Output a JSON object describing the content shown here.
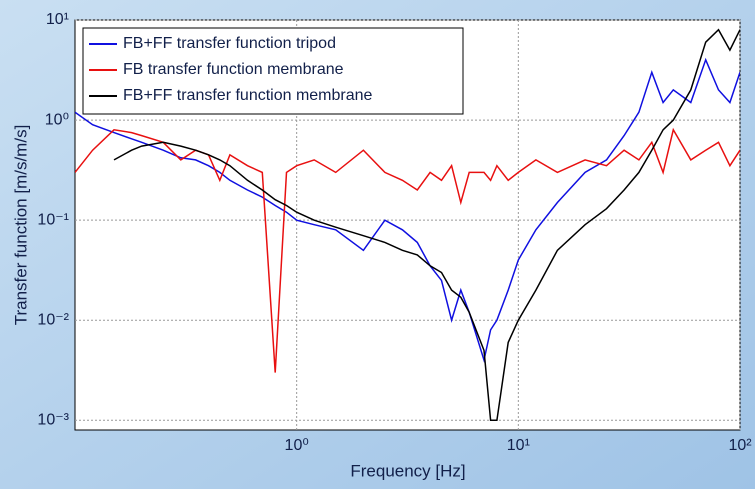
{
  "chart_data": {
    "type": "line",
    "xlabel": "Frequency [Hz]",
    "ylabel": "Transfer function [m/s/m/s]",
    "log_x": true,
    "log_y": true,
    "grid": true,
    "legend": "upper left",
    "xlim": [
      0.1,
      100
    ],
    "ylim": [
      0.0008,
      10
    ],
    "xticks": [
      {
        "value": 1,
        "label": "10⁰"
      },
      {
        "value": 10,
        "label": "10¹"
      },
      {
        "value": 100,
        "label": "10²"
      }
    ],
    "yticks": [
      {
        "value": 0.001,
        "label": "10⁻³"
      },
      {
        "value": 0.01,
        "label": "10⁻²"
      },
      {
        "value": 0.1,
        "label": "10⁻¹"
      },
      {
        "value": 1,
        "label": "10⁰"
      },
      {
        "value": 10,
        "label": "10¹"
      }
    ],
    "x": [
      0.1,
      0.12,
      0.15,
      0.18,
      0.2,
      0.25,
      0.3,
      0.35,
      0.4,
      0.45,
      0.5,
      0.6,
      0.7,
      0.8,
      0.9,
      1,
      1.2,
      1.5,
      2,
      2.5,
      3,
      3.5,
      4,
      4.5,
      5,
      5.5,
      6,
      7,
      7.5,
      8,
      9,
      10,
      12,
      15,
      20,
      25,
      30,
      35,
      40,
      45,
      50,
      60,
      70,
      80,
      90,
      100
    ],
    "series": [
      {
        "name": "FB+FF transfer function tripod",
        "color": "#1010e0",
        "values": [
          1.2,
          0.9,
          0.75,
          0.65,
          0.6,
          0.5,
          0.42,
          0.4,
          0.35,
          0.3,
          0.25,
          0.2,
          0.17,
          0.14,
          0.12,
          0.1,
          0.09,
          0.08,
          0.05,
          0.1,
          0.08,
          0.06,
          0.035,
          0.025,
          0.01,
          0.02,
          0.012,
          0.004,
          0.008,
          0.01,
          0.02,
          0.04,
          0.08,
          0.15,
          0.3,
          0.4,
          0.7,
          1.2,
          3,
          1.5,
          2,
          1.5,
          4,
          2,
          1.5,
          3
        ]
      },
      {
        "name": "FB transfer function membrane",
        "color": "#e81010",
        "values": [
          0.3,
          0.5,
          0.8,
          0.75,
          0.7,
          0.6,
          0.4,
          0.5,
          0.45,
          0.25,
          0.45,
          0.35,
          0.3,
          0.003,
          0.3,
          0.35,
          0.4,
          0.3,
          0.5,
          0.3,
          0.25,
          0.2,
          0.3,
          0.25,
          0.35,
          0.15,
          0.3,
          0.3,
          0.25,
          0.35,
          0.25,
          0.3,
          0.4,
          0.3,
          0.4,
          0.35,
          0.5,
          0.4,
          0.6,
          0.3,
          0.8,
          0.4,
          0.5,
          0.6,
          0.35,
          0.5
        ]
      },
      {
        "name": "FB+FF transfer function membrane",
        "color": "#000000",
        "values": [
          null,
          null,
          0.4,
          0.5,
          0.55,
          0.6,
          0.55,
          0.5,
          0.45,
          0.4,
          0.35,
          0.25,
          0.2,
          0.16,
          0.14,
          0.12,
          0.1,
          0.085,
          0.07,
          0.06,
          0.05,
          0.045,
          0.035,
          0.03,
          0.02,
          0.017,
          0.012,
          0.005,
          0.001,
          0.001,
          0.006,
          0.01,
          0.02,
          0.05,
          0.09,
          0.13,
          0.2,
          0.3,
          0.5,
          0.8,
          1,
          2,
          6,
          8,
          5,
          8
        ]
      }
    ]
  }
}
